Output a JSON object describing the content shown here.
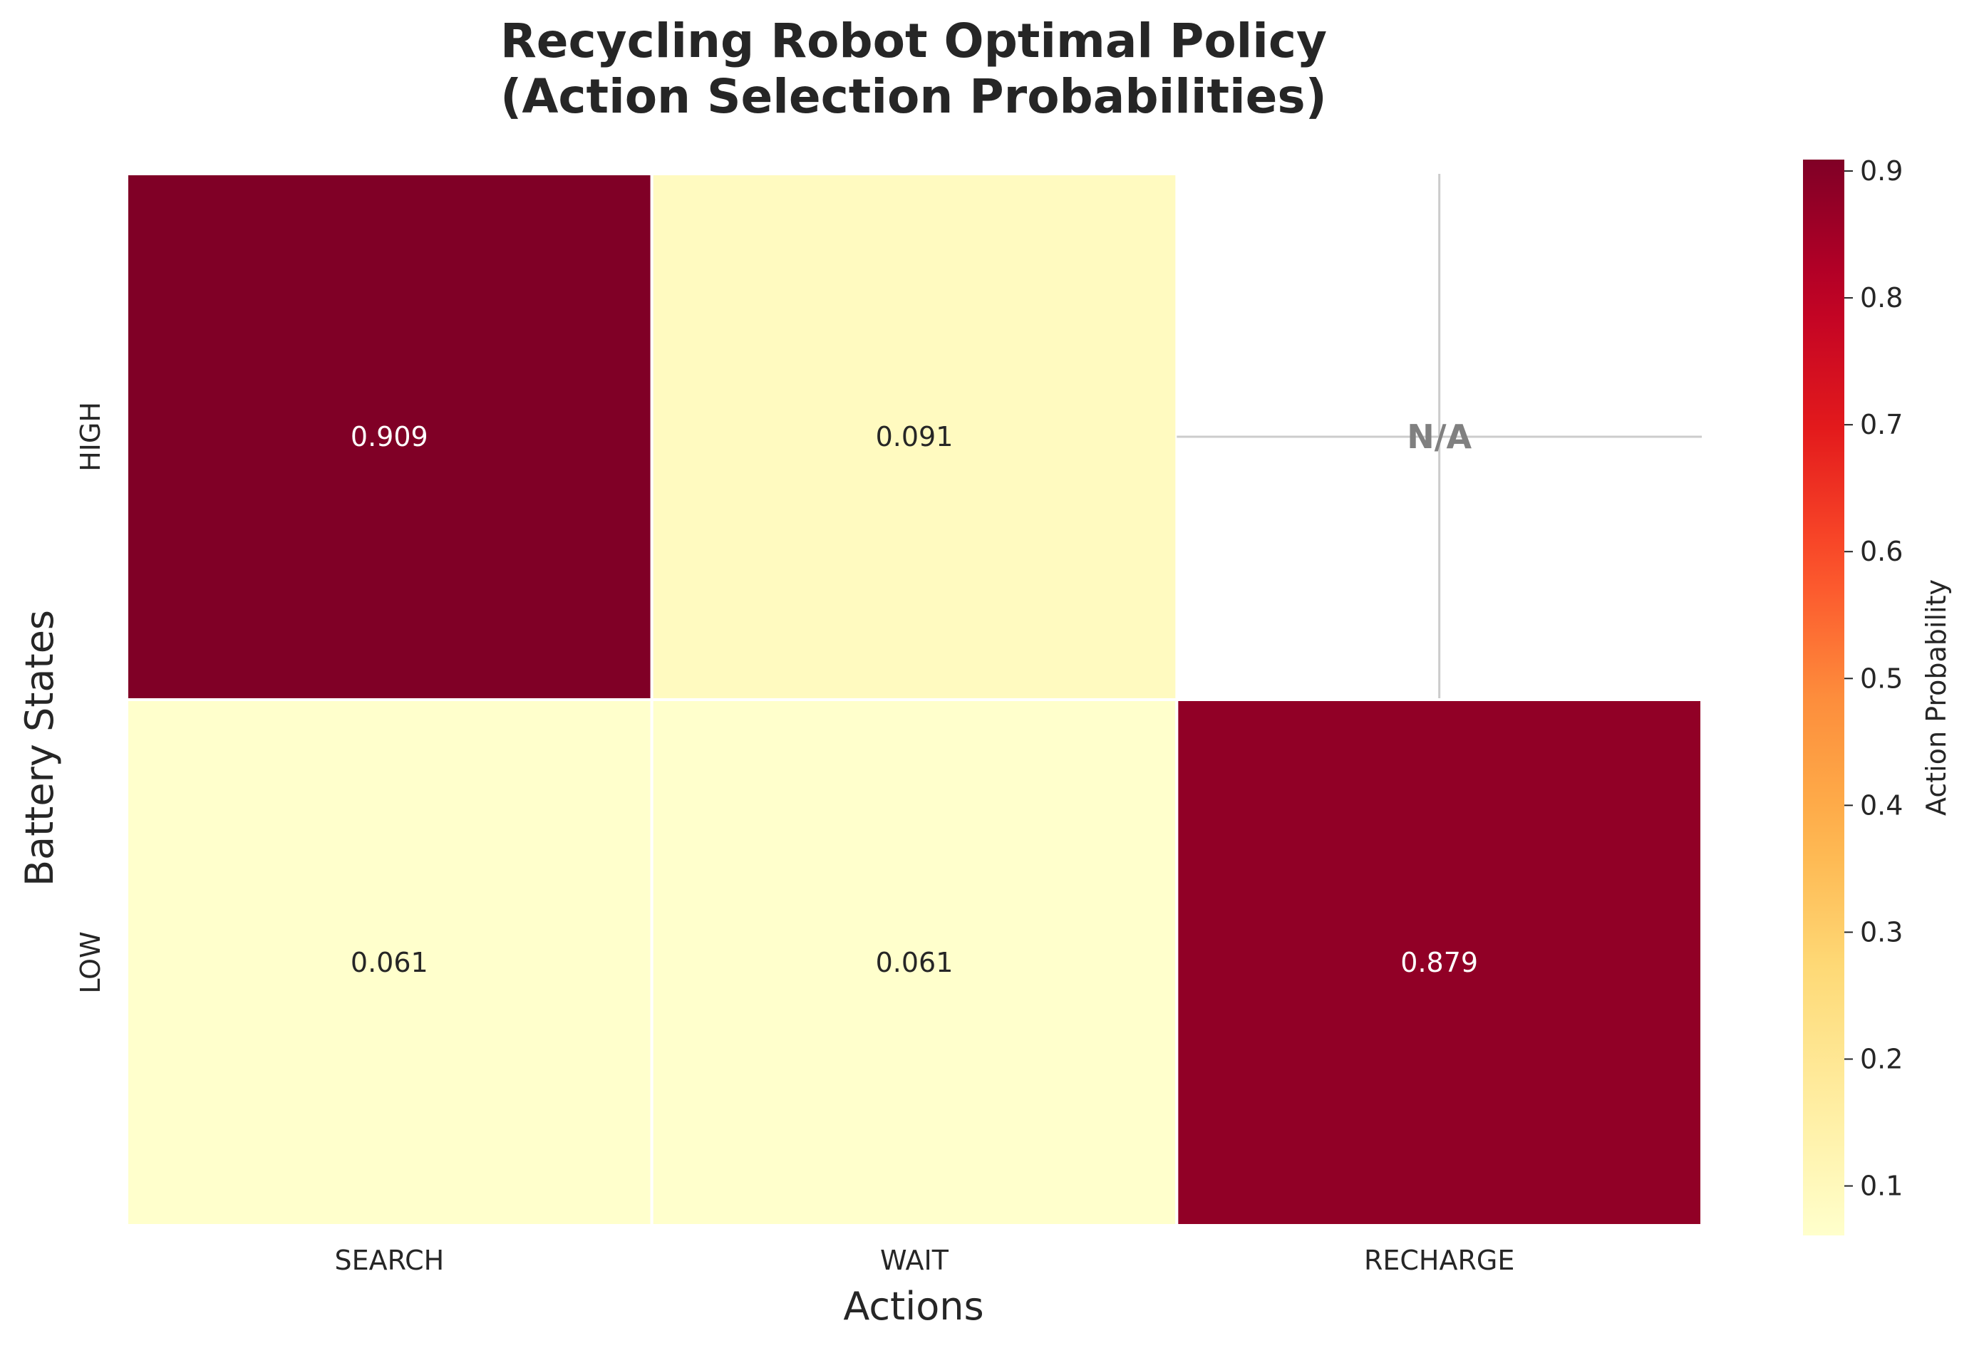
{
  "chart_data": {
    "type": "heatmap",
    "title_lines": [
      "Recycling Robot Optimal Policy",
      "(Action Selection Probabilities)"
    ],
    "xlabel": "Actions",
    "ylabel": "Battery States",
    "x_categories": [
      "SEARCH",
      "WAIT",
      "RECHARGE"
    ],
    "y_categories": [
      "HIGH",
      "LOW"
    ],
    "values": [
      [
        0.909,
        0.091,
        null
      ],
      [
        0.061,
        0.061,
        0.879
      ]
    ],
    "cell_labels": [
      [
        "0.909",
        "0.091",
        "N/A"
      ],
      [
        "0.061",
        "0.061",
        "0.879"
      ]
    ],
    "missing_label": "N/A",
    "colormap": "YlOrRd",
    "colors": {
      "low": "#ffffcc",
      "high": "#800026",
      "grid": "#cccccc"
    },
    "colorbar": {
      "label": "Action Probability",
      "range": [
        0.061,
        0.909
      ],
      "ticks": [
        0.1,
        0.2,
        0.3,
        0.4,
        0.5,
        0.6,
        0.7,
        0.8,
        0.9
      ],
      "tick_labels": [
        "0.1",
        "0.2",
        "0.3",
        "0.4",
        "0.5",
        "0.6",
        "0.7",
        "0.8",
        "0.9"
      ]
    }
  }
}
